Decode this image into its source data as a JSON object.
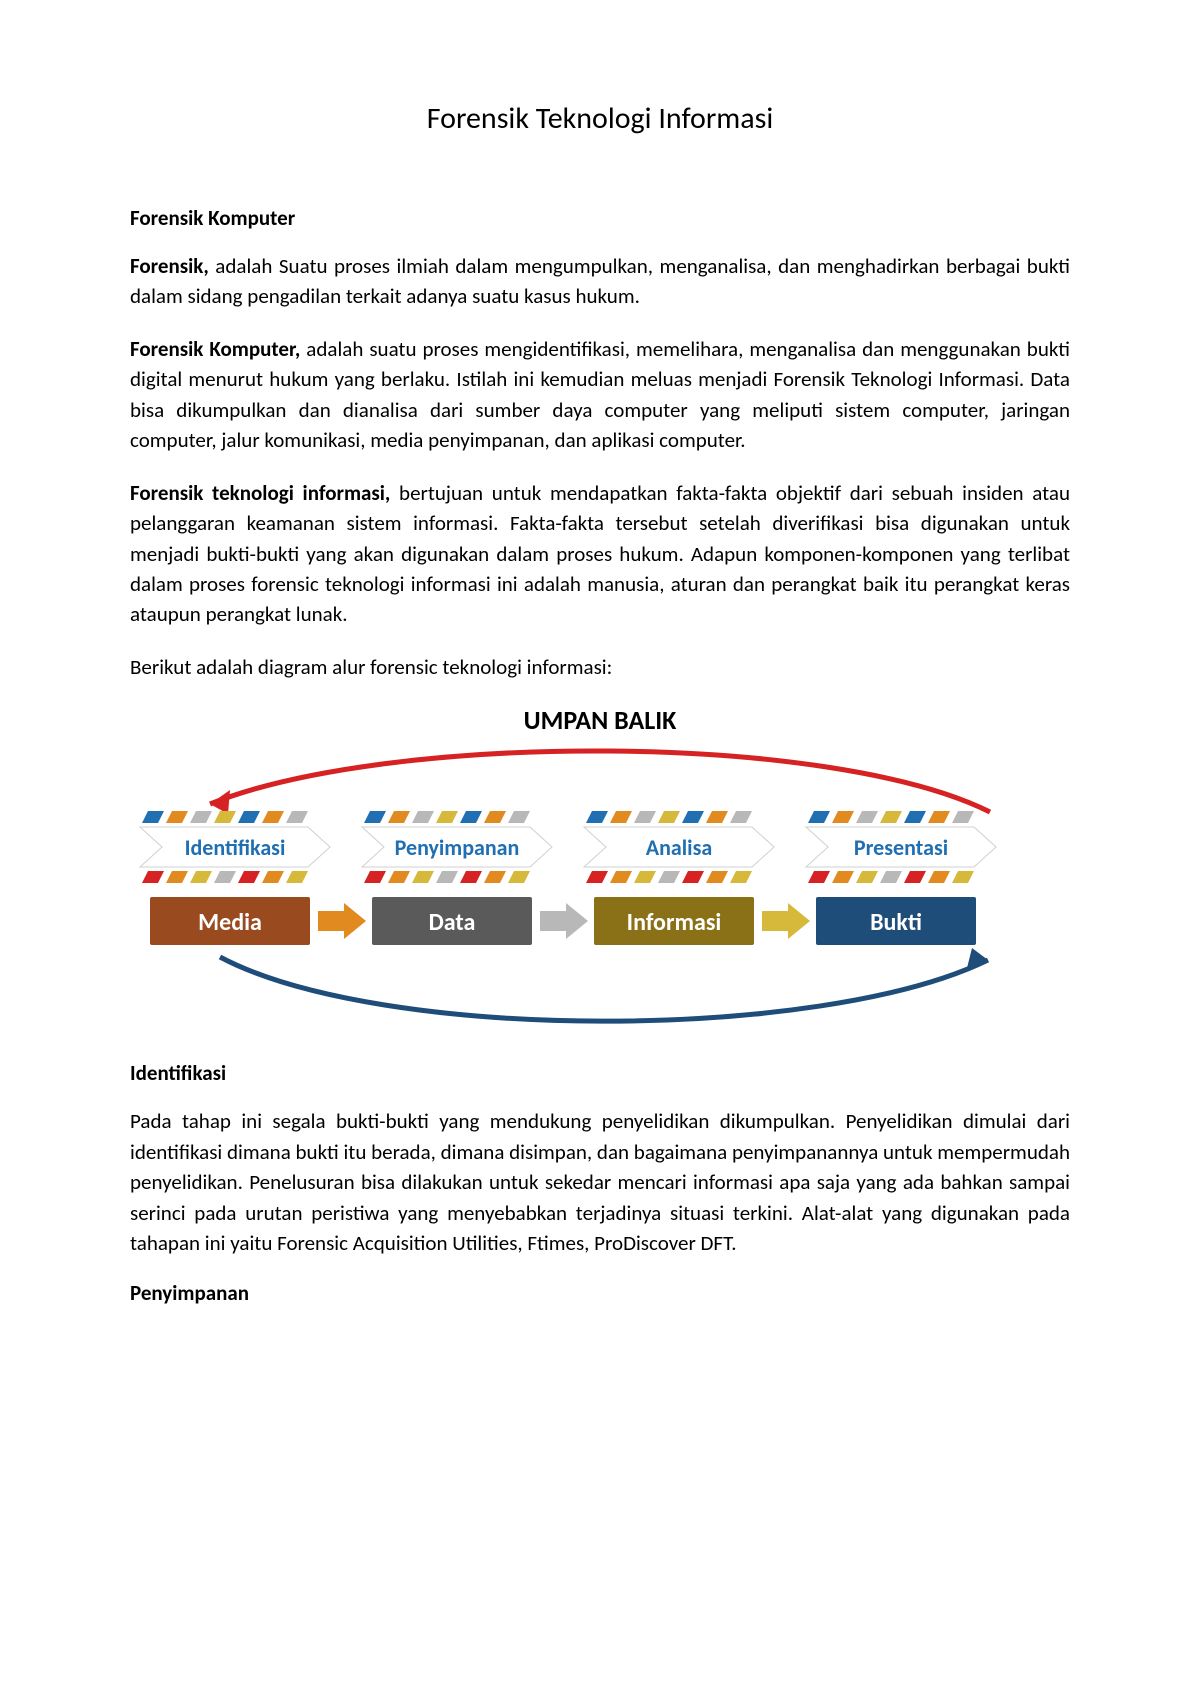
{
  "title": "Forensik Teknologi Informasi",
  "section1_heading": "Forensik Komputer",
  "para1_lead": "Forensik,",
  "para1_body": " adalah Suatu proses ilmiah dalam mengumpulkan, menganalisa, dan menghadirkan berbagai bukti dalam sidang pengadilan terkait adanya suatu kasus hukum.",
  "para2_lead": "Forensik Komputer,",
  "para2_body": " adalah suatu proses mengidentifikasi, memelihara, menganalisa dan menggunakan bukti digital menurut hukum yang berlaku. Istilah ini kemudian meluas menjadi Forensik Teknologi Informasi. Data bisa dikumpulkan dan dianalisa dari sumber daya computer yang meliputi sistem computer, jaringan computer, jalur komunikasi, media penyimpanan, dan aplikasi computer.",
  "para3_lead": "Forensik teknologi informasi,",
  "para3_body": " bertujuan untuk mendapatkan fakta-fakta objektif dari sebuah insiden atau pelanggaran keamanan sistem informasi. Fakta-fakta tersebut setelah diverifikasi bisa digunakan untuk menjadi bukti-bukti yang akan digunakan dalam proses hukum. Adapun komponen-komponen yang terlibat dalam proses forensic teknologi informasi ini adalah manusia, aturan dan perangkat baik itu perangkat keras ataupun perangkat lunak.",
  "para4": "Berikut adalah diagram alur forensic teknologi informasi:",
  "diagram": {
    "feedback_label": "UMPAN BALIK",
    "chevrons": [
      {
        "label": "Identifikasi",
        "text_color": "#1f6fb2"
      },
      {
        "label": "Penyimpanan",
        "text_color": "#1f6fb2"
      },
      {
        "label": "Analisa",
        "text_color": "#1f6fb2"
      },
      {
        "label": "Presentasi",
        "text_color": "#1f6fb2"
      }
    ],
    "boxes": [
      {
        "label": "Media",
        "fill": "#9a4a1f"
      },
      {
        "label": "Data",
        "fill": "#5a5a5a"
      },
      {
        "label": "Informasi",
        "fill": "#8a7016"
      },
      {
        "label": "Bukti",
        "fill": "#1f4d7a"
      }
    ],
    "arrow_colors": [
      "#e08a1f",
      "#b8b8b8",
      "#d6b83a"
    ],
    "stripe_colors_top": [
      "#1f6fb2",
      "#e08a1f",
      "#b8b8b8",
      "#d6b83a"
    ],
    "stripe_colors_bottom": [
      "#d62222",
      "#e08a1f",
      "#d6b83a",
      "#b8b8b8"
    ],
    "feedback_arrow_color": "#d62222",
    "forward_arrow_color": "#1f4d7a",
    "chevron_font_size": 22,
    "box_font_size": 24
  },
  "section2_heading": "Identifikasi",
  "para5": "Pada tahap ini segala bukti-bukti yang mendukung penyelidikan dikumpulkan. Penyelidikan dimulai dari identifikasi dimana bukti itu berada, dimana disimpan, dan bagaimana penyimpanannya untuk mempermudah penyelidikan. Penelusuran bisa dilakukan untuk sekedar mencari informasi apa saja yang ada bahkan sampai serinci pada urutan peristiwa yang menyebabkan terjadinya situasi terkini. Alat-alat yang digunakan pada tahapan ini yaitu Forensic Acquisition Utilities, Ftimes, ProDiscover DFT.",
  "section3_heading": "Penyimpanan"
}
